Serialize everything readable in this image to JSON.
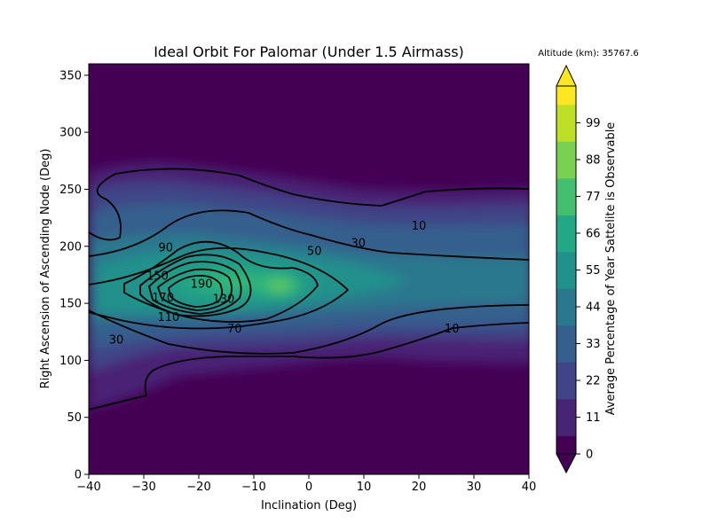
{
  "chart_data": {
    "type": "heatmap",
    "title": "Ideal Orbit For Palomar (Under 1.5 Airmass)",
    "annotation": "Altitude (km): 35767.6",
    "xlabel": "Inclination (Deg)",
    "ylabel": "Right Ascension of Ascending Node (Deg)",
    "colorbar_label": "Average Percentage of Year Sattelite is Observable",
    "xlim": [
      -40,
      40
    ],
    "ylim": [
      0,
      360
    ],
    "x_ticks": [
      -40,
      -30,
      -20,
      -10,
      0,
      10,
      20,
      30,
      40
    ],
    "y_ticks": [
      0,
      50,
      100,
      150,
      200,
      250,
      300,
      350
    ],
    "colorbar_ticks": [
      0,
      11,
      22,
      33,
      44,
      55,
      66,
      77,
      88,
      99
    ],
    "colorbar_range": [
      0,
      110
    ],
    "colormap": [
      "#440154",
      "#482475",
      "#414487",
      "#355f8d",
      "#2a788e",
      "#21918c",
      "#22a884",
      "#44bf70",
      "#7ad151",
      "#bddf26",
      "#fde725"
    ],
    "peak": {
      "x": -5,
      "y": 158,
      "value": 75
    },
    "grid": false,
    "contour_labels": [
      {
        "text": "10",
        "x": 20,
        "y": 218
      },
      {
        "text": "30",
        "x": 9,
        "y": 203
      },
      {
        "text": "50",
        "x": 1,
        "y": 196
      },
      {
        "text": "90",
        "x": -26,
        "y": 199
      },
      {
        "text": "150",
        "x": -27.5,
        "y": 174
      },
      {
        "text": "170",
        "x": -26.5,
        "y": 155
      },
      {
        "text": "190",
        "x": -19.5,
        "y": 167
      },
      {
        "text": "130",
        "x": -15.5,
        "y": 154
      },
      {
        "text": "110",
        "x": -25.5,
        "y": 138
      },
      {
        "text": "70",
        "x": -13.5,
        "y": 128
      },
      {
        "text": "30",
        "x": -35,
        "y": 118
      },
      {
        "text": "10",
        "x": 26,
        "y": 128
      }
    ]
  }
}
